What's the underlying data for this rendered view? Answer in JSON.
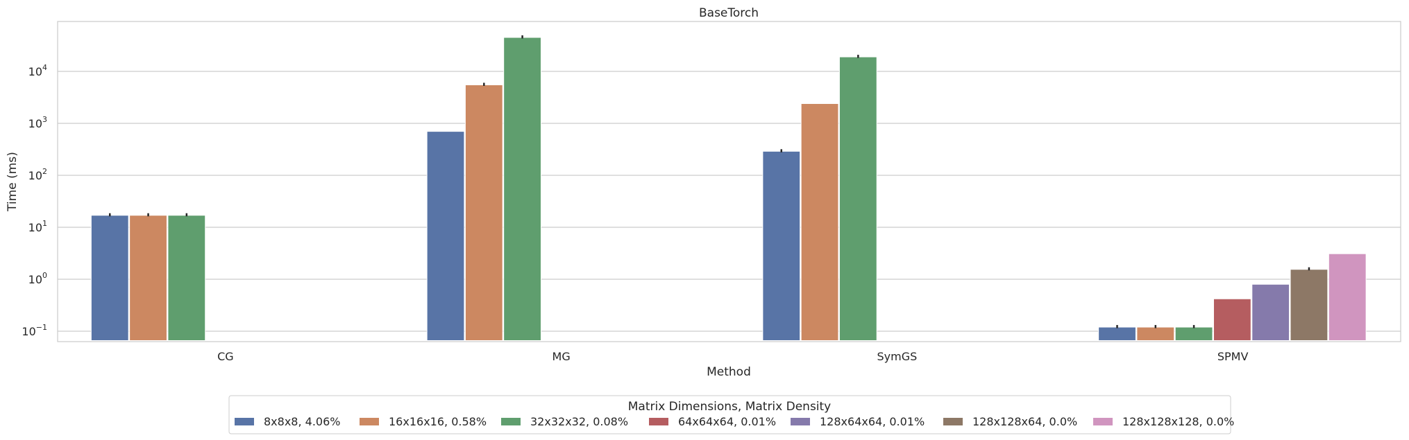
{
  "chart_data": {
    "type": "bar",
    "title": "BaseTorch",
    "xlabel": "Method",
    "ylabel": "Time (ms)",
    "yscale": "log",
    "ylim": [
      0.06,
      90000
    ],
    "yticks": [
      {
        "value": 0.1,
        "base": "10",
        "exp": "−1"
      },
      {
        "value": 1,
        "base": "10",
        "exp": "0"
      },
      {
        "value": 10,
        "base": "10",
        "exp": "1"
      },
      {
        "value": 100,
        "base": "10",
        "exp": "2"
      },
      {
        "value": 1000,
        "base": "10",
        "exp": "3"
      },
      {
        "value": 10000,
        "base": "10",
        "exp": "4"
      }
    ],
    "grid": "horizontal",
    "categories": [
      "CG",
      "MG",
      "SymGS",
      "SPMV"
    ],
    "legend": {
      "title": "Matrix Dimensions, Matrix Density",
      "placement": "bottom-center"
    },
    "series": [
      {
        "name": "8x8x8, 4.06%",
        "color": "#5874a6",
        "values": [
          17,
          700,
          290,
          0.12
        ]
      },
      {
        "name": "16x16x16, 0.58%",
        "color": "#cc8861",
        "values": [
          17,
          5500,
          2400,
          0.12
        ]
      },
      {
        "name": "32x32x32, 0.08%",
        "color": "#5f9e6e",
        "values": [
          17,
          45000,
          19000,
          0.12
        ]
      },
      {
        "name": "64x64x64, 0.01%",
        "color": "#b55d60",
        "values": [
          null,
          null,
          null,
          0.42
        ]
      },
      {
        "name": "128x64x64, 0.01%",
        "color": "#857aab",
        "values": [
          null,
          null,
          null,
          0.8
        ]
      },
      {
        "name": "128x128x64, 0.0%",
        "color": "#8d7866",
        "values": [
          null,
          null,
          null,
          1.55
        ]
      },
      {
        "name": "128x128x128, 0.0%",
        "color": "#d095bf",
        "values": [
          null,
          null,
          null,
          3.1
        ]
      }
    ],
    "error_bars": [
      [
        true,
        false,
        true,
        true
      ],
      [
        true,
        true,
        false,
        true
      ],
      [
        true,
        true,
        true,
        true
      ],
      [
        false,
        false,
        false,
        false
      ],
      [
        false,
        false,
        false,
        false
      ],
      [
        false,
        false,
        false,
        true
      ],
      [
        false,
        false,
        false,
        false
      ]
    ]
  }
}
